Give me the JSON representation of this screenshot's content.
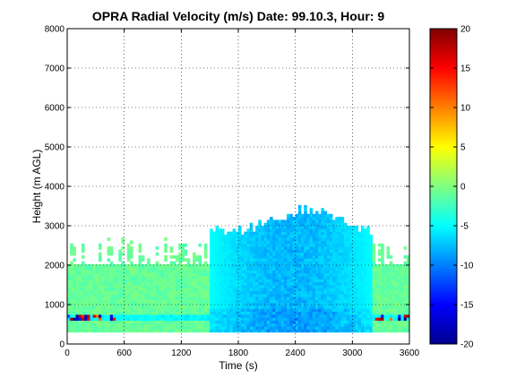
{
  "chart_data": {
    "type": "heatmap",
    "title": "OPRA Radial Velocity (m/s)  Date: 99.10.3, Hour: 9",
    "xlabel": "Time (s)",
    "ylabel": "Height (m AGL)",
    "xlim": [
      0,
      3600
    ],
    "ylim": [
      0,
      8000
    ],
    "x_ticks": [
      0,
      600,
      1200,
      1800,
      2400,
      3000,
      3600
    ],
    "y_ticks": [
      0,
      1000,
      2000,
      3000,
      4000,
      5000,
      6000,
      7000,
      8000
    ],
    "grid": true,
    "colorbar": {
      "colormap": "jet",
      "clim": [
        -20,
        20
      ],
      "ticks": [
        20,
        15,
        10,
        5,
        0,
        -5,
        -10,
        -15,
        -20
      ],
      "placement": "right"
    },
    "data_summary": {
      "lowest_height_m": 300,
      "typical_top_height_m": 2000,
      "max_echo_height_m": 3300,
      "core_region_time_s": [
        1500,
        3200
      ],
      "core_region_velocity_ms": [
        -5,
        -9
      ],
      "background_velocity_ms": [
        0,
        -2
      ],
      "strong_velocity_band_height_m": [
        550,
        700
      ]
    }
  }
}
